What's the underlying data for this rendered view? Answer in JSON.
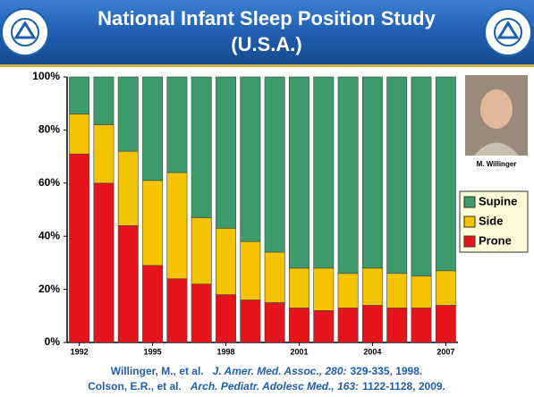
{
  "chart_data": {
    "type": "stacked_bar",
    "title": "National Infant Sleep Position Study",
    "subtitle": "(U.S.A.)",
    "categories": [
      "1992",
      null,
      null,
      "1995",
      null,
      null,
      "1998",
      null,
      null,
      "2001",
      null,
      null,
      "2004",
      null,
      null,
      "2007"
    ],
    "series": [
      {
        "name": "Supine",
        "color": "#3d9b6b",
        "values": [
          14,
          18,
          28,
          39,
          36,
          53,
          57,
          62,
          66,
          72,
          72,
          74,
          72,
          74,
          75,
          73
        ]
      },
      {
        "name": "Side",
        "color": "#f5c400",
        "values": [
          15,
          22,
          28,
          32,
          40,
          25,
          25,
          22,
          19,
          15,
          16,
          13,
          14,
          13,
          12,
          13
        ]
      },
      {
        "name": "Prone",
        "color": "#e8141b",
        "values": [
          71,
          60,
          44,
          29,
          24,
          22,
          18,
          16,
          15,
          13,
          12,
          13,
          14,
          13,
          13,
          14
        ]
      }
    ],
    "ylim": [
      0,
      100
    ],
    "yticks": [
      {
        "value": 0,
        "label": "0%"
      },
      {
        "value": 20,
        "label": "20%"
      },
      {
        "value": 40,
        "label": "40%"
      },
      {
        "value": 60,
        "label": "60%"
      },
      {
        "value": 80,
        "label": "80%"
      },
      {
        "value": 100,
        "label": "100%"
      }
    ],
    "legend": "right",
    "photo_caption": "M. Willinger",
    "citations": [
      {
        "authors": "Willinger, M., et al.",
        "journal": "J. Amer. Med. Assoc., 280:",
        "pages": "329-335, 1998."
      },
      {
        "authors": "Colson, E.R., et al.",
        "journal": "Arch. Pediatr. Adolesc Med., 163:",
        "pages": "1122-1128, 2009."
      }
    ]
  }
}
